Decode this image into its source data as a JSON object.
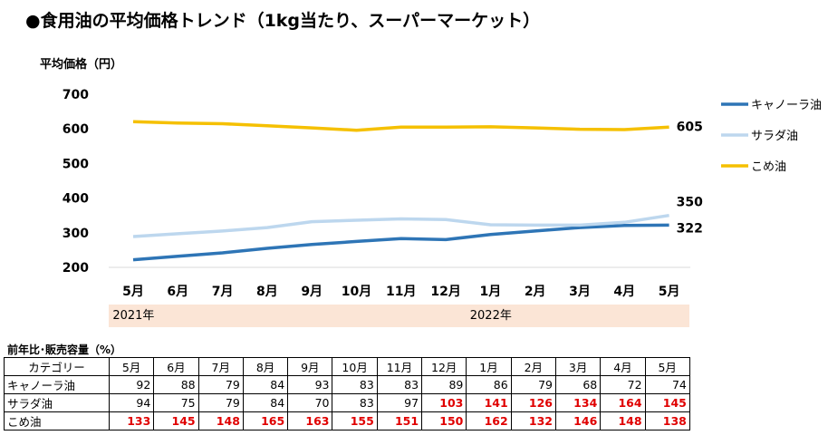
{
  "title": "●食用油の平均価格トレンド（1kg当たり、スーパーマーケット）",
  "chart_data": {
    "type": "line",
    "ylabel": "平均価格（円）",
    "ylim": [
      200,
      700
    ],
    "yticks": [
      200,
      300,
      400,
      500,
      600,
      700
    ],
    "categories": [
      "5月",
      "6月",
      "7月",
      "8月",
      "9月",
      "10月",
      "11月",
      "12月",
      "1月",
      "2月",
      "3月",
      "4月",
      "5月"
    ],
    "years": [
      {
        "label": "2021年",
        "from": 0,
        "to": 7
      },
      {
        "label": "2022年",
        "from": 8,
        "to": 12
      }
    ],
    "series": [
      {
        "name": "キャノーラ油",
        "color": "#2e75b6",
        "end_label": "322",
        "values": [
          222,
          232,
          242,
          255,
          266,
          275,
          283,
          280,
          295,
          305,
          315,
          321,
          322
        ]
      },
      {
        "name": "サラダ油",
        "color": "#bdd7ee",
        "end_label": "350",
        "values": [
          289,
          297,
          305,
          315,
          332,
          336,
          340,
          338,
          323,
          322,
          322,
          330,
          350
        ]
      },
      {
        "name": "こめ油",
        "color": "#f5c000",
        "end_label": "605",
        "values": [
          621,
          617,
          615,
          609,
          603,
          596,
          605,
          605,
          606,
          603,
          599,
          598,
          605
        ]
      }
    ],
    "legend_position": "right",
    "grid": false
  },
  "table": {
    "title": "前年比･販売容量（%）",
    "header": [
      "カテゴリー",
      "5月",
      "6月",
      "7月",
      "8月",
      "9月",
      "10月",
      "11月",
      "12月",
      "1月",
      "2月",
      "3月",
      "4月",
      "5月"
    ],
    "rows": [
      {
        "category": "キャノーラ油",
        "values": [
          92,
          88,
          79,
          84,
          93,
          83,
          83,
          89,
          86,
          79,
          68,
          72,
          74
        ]
      },
      {
        "category": "サラダ油",
        "values": [
          94,
          75,
          79,
          84,
          70,
          83,
          97,
          103,
          141,
          126,
          134,
          164,
          145
        ]
      },
      {
        "category": "こめ油",
        "values": [
          133,
          145,
          148,
          165,
          163,
          155,
          151,
          150,
          162,
          132,
          146,
          148,
          138
        ]
      }
    ]
  }
}
